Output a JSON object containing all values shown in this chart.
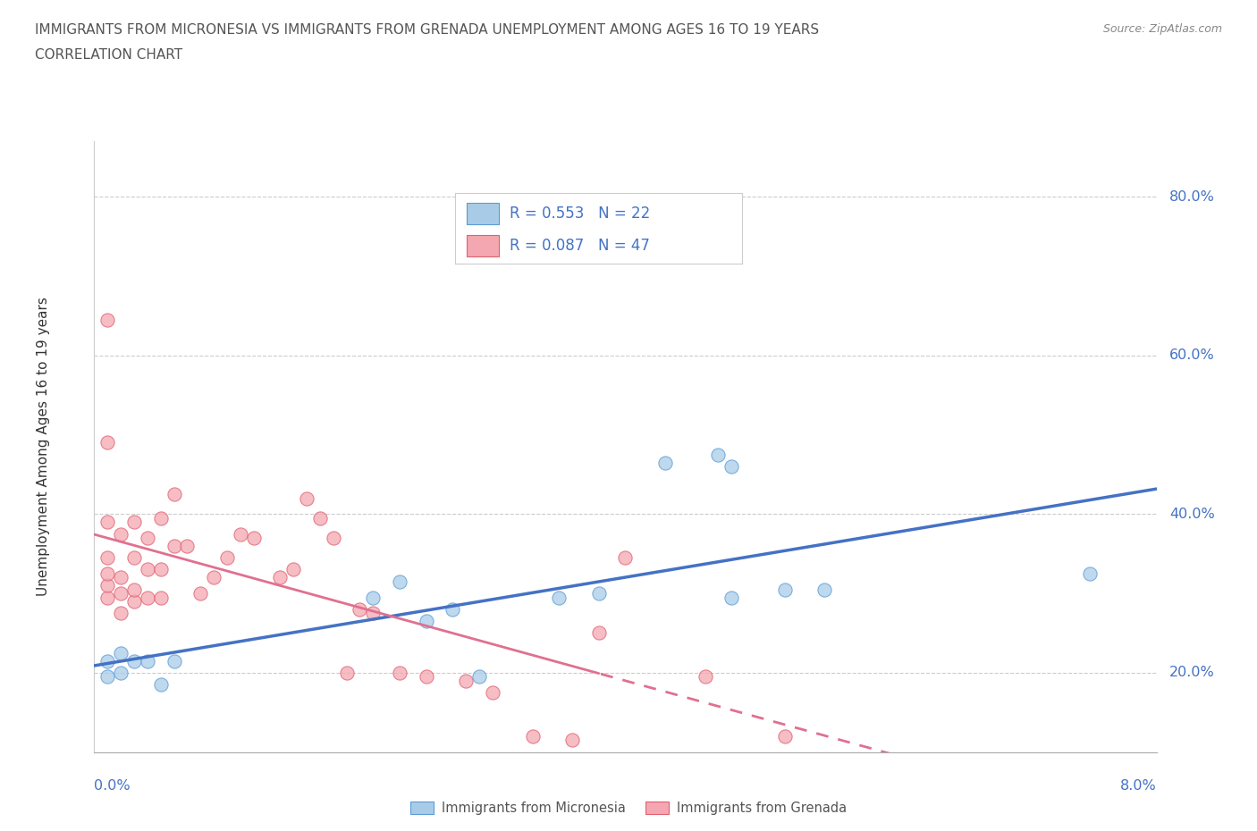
{
  "title_line1": "IMMIGRANTS FROM MICRONESIA VS IMMIGRANTS FROM GRENADA UNEMPLOYMENT AMONG AGES 16 TO 19 YEARS",
  "title_line2": "CORRELATION CHART",
  "source": "Source: ZipAtlas.com",
  "ylabel": "Unemployment Among Ages 16 to 19 years",
  "xlim": [
    0.0,
    0.08
  ],
  "ylim": [
    0.1,
    0.87
  ],
  "micronesia_fill": "#A8CCE8",
  "micronesia_edge": "#5B9BD5",
  "grenada_fill": "#F4A7B0",
  "grenada_edge": "#E06070",
  "blue_line_color": "#4472C4",
  "pink_line_color": "#E07090",
  "text_color": "#4472C4",
  "title_color": "#555555",
  "grid_color": "#cccccc",
  "R_micronesia": 0.553,
  "N_micronesia": 22,
  "R_grenada": 0.087,
  "N_grenada": 47,
  "legend_micronesia": "Immigrants from Micronesia",
  "legend_grenada": "Immigrants from Grenada",
  "micronesia_x": [
    0.001,
    0.001,
    0.002,
    0.002,
    0.003,
    0.004,
    0.005,
    0.006,
    0.021,
    0.023,
    0.025,
    0.027,
    0.029,
    0.035,
    0.038,
    0.043,
    0.047,
    0.048,
    0.048,
    0.052,
    0.055,
    0.075
  ],
  "micronesia_y": [
    0.195,
    0.215,
    0.2,
    0.225,
    0.215,
    0.215,
    0.185,
    0.215,
    0.295,
    0.315,
    0.265,
    0.28,
    0.195,
    0.295,
    0.3,
    0.465,
    0.475,
    0.46,
    0.295,
    0.305,
    0.305,
    0.325
  ],
  "grenada_x": [
    0.001,
    0.001,
    0.001,
    0.001,
    0.001,
    0.001,
    0.001,
    0.002,
    0.002,
    0.002,
    0.002,
    0.003,
    0.003,
    0.003,
    0.003,
    0.004,
    0.004,
    0.004,
    0.005,
    0.005,
    0.005,
    0.006,
    0.006,
    0.007,
    0.008,
    0.009,
    0.01,
    0.011,
    0.012,
    0.014,
    0.015,
    0.016,
    0.017,
    0.018,
    0.019,
    0.02,
    0.021,
    0.023,
    0.025,
    0.028,
    0.03,
    0.033,
    0.036,
    0.038,
    0.04,
    0.046,
    0.052
  ],
  "grenada_y": [
    0.295,
    0.31,
    0.325,
    0.345,
    0.39,
    0.49,
    0.645,
    0.275,
    0.3,
    0.32,
    0.375,
    0.29,
    0.305,
    0.345,
    0.39,
    0.295,
    0.33,
    0.37,
    0.295,
    0.33,
    0.395,
    0.36,
    0.425,
    0.36,
    0.3,
    0.32,
    0.345,
    0.375,
    0.37,
    0.32,
    0.33,
    0.42,
    0.395,
    0.37,
    0.2,
    0.28,
    0.275,
    0.2,
    0.195,
    0.19,
    0.175,
    0.12,
    0.115,
    0.25,
    0.345,
    0.195,
    0.12
  ],
  "ytick_vals": [
    0.2,
    0.4,
    0.6,
    0.8
  ],
  "ytick_labels": [
    "20.0%",
    "40.0%",
    "60.0%",
    "80.0%"
  ],
  "xtick_left": "0.0%",
  "xtick_right": "8.0%"
}
